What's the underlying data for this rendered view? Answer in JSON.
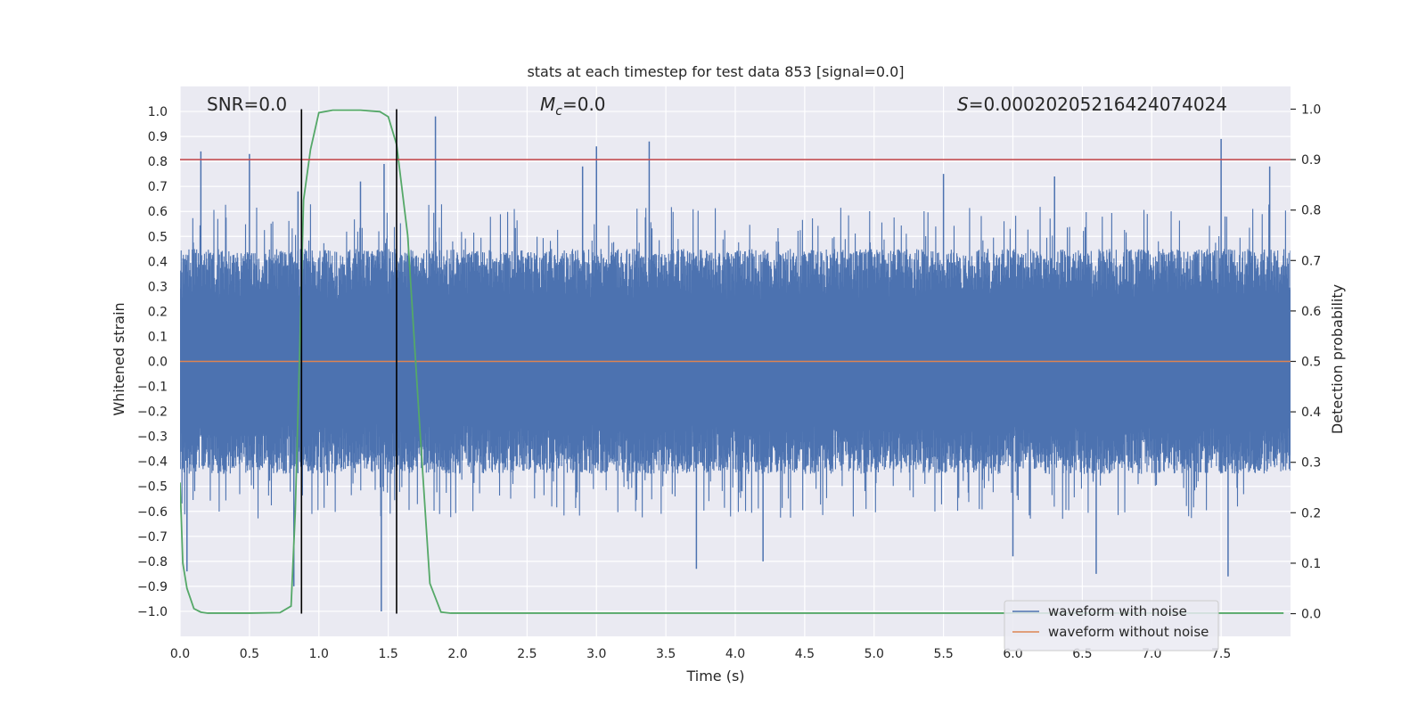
{
  "chart_data": {
    "type": "line",
    "title": "stats at each timestep for test data 853 [signal=0.0]",
    "xlabel": "Time (s)",
    "ylabel": "Whitened strain",
    "y2label": "Detection probability",
    "xlim": [
      0.0,
      8.0
    ],
    "ylim": [
      -1.1,
      1.1
    ],
    "y2lim": [
      -0.045,
      1.045
    ],
    "x_ticks": [
      0.0,
      0.5,
      1.0,
      1.5,
      2.0,
      2.5,
      3.0,
      3.5,
      4.0,
      4.5,
      5.0,
      5.5,
      6.0,
      6.5,
      7.0,
      7.5
    ],
    "x_tick_labels": [
      "0.0",
      "0.5",
      "1.0",
      "1.5",
      "2.0",
      "2.5",
      "3.0",
      "3.5",
      "4.0",
      "4.5",
      "5.0",
      "5.5",
      "6.0",
      "6.5",
      "7.0",
      "7.5"
    ],
    "y_ticks": [
      1.0,
      0.9,
      0.8,
      0.7,
      0.6,
      0.5,
      0.4,
      0.3,
      0.2,
      0.1,
      0.0,
      -0.1,
      -0.2,
      -0.3,
      -0.4,
      -0.5,
      -0.6,
      -0.7,
      -0.8,
      -0.9,
      -1.0
    ],
    "y_tick_labels": [
      "1.0",
      "0.9",
      "0.8",
      "0.7",
      "0.6",
      "0.5",
      "0.4",
      "0.3",
      "0.2",
      "0.1",
      "0.0",
      "−0.1",
      "−0.2",
      "−0.3",
      "−0.4",
      "−0.5",
      "−0.6",
      "−0.7",
      "−0.8",
      "−0.9",
      "−1.0"
    ],
    "y2_ticks": [
      1.0,
      0.9,
      0.8,
      0.7,
      0.6,
      0.5,
      0.4,
      0.3,
      0.2,
      0.1,
      0.0
    ],
    "y2_tick_labels": [
      "1.0",
      "0.9",
      "0.8",
      "0.7",
      "0.6",
      "0.5",
      "0.4",
      "0.3",
      "0.2",
      "0.1",
      "0.0"
    ],
    "grid": true,
    "legend_position": "lower-right",
    "annotations": {
      "snr": "SNR=0.0",
      "mc_symbol": "M",
      "mc_sub": "c",
      "mc_value": "=0.0",
      "s_symbol": "S",
      "s_value": "=0.00020205216424074024"
    },
    "vertical_lines": [
      0.875,
      1.56
    ],
    "threshold_y2": 0.9,
    "series": [
      {
        "name": "waveform with noise",
        "color": "#4c72b0",
        "axis": "left",
        "kind": "noise",
        "x_range": [
          0.0,
          8.0
        ],
        "envelope_typical": 0.45,
        "spikes": [
          [
            0.05,
            -0.84
          ],
          [
            0.15,
            0.84
          ],
          [
            0.5,
            0.83
          ],
          [
            0.82,
            -0.9
          ],
          [
            0.85,
            0.68
          ],
          [
            1.3,
            0.72
          ],
          [
            1.45,
            -1.0
          ],
          [
            1.47,
            0.79
          ],
          [
            1.84,
            0.98
          ],
          [
            2.9,
            0.78
          ],
          [
            3.0,
            0.86
          ],
          [
            3.38,
            0.88
          ],
          [
            3.72,
            -0.83
          ],
          [
            4.2,
            -0.8
          ],
          [
            5.5,
            0.75
          ],
          [
            6.0,
            -0.78
          ],
          [
            6.3,
            0.74
          ],
          [
            6.6,
            -0.85
          ],
          [
            7.5,
            0.89
          ],
          [
            7.55,
            -0.86
          ],
          [
            7.85,
            0.78
          ]
        ]
      },
      {
        "name": "waveform without noise",
        "color": "#dd8452",
        "axis": "left",
        "x": [
          0.0,
          8.0
        ],
        "values": [
          0.0,
          0.0
        ]
      },
      {
        "name": "detection probability",
        "color": "#55a868",
        "axis": "right",
        "x": [
          0.0,
          0.02,
          0.05,
          0.1,
          0.15,
          0.2,
          0.3,
          0.5,
          0.72,
          0.8,
          0.83,
          0.86,
          0.89,
          0.94,
          1.0,
          1.1,
          1.3,
          1.44,
          1.5,
          1.56,
          1.64,
          1.72,
          1.8,
          1.88,
          1.95,
          2.2,
          7.95
        ],
        "values": [
          0.26,
          0.1,
          0.05,
          0.01,
          0.003,
          0.001,
          0.001,
          0.001,
          0.002,
          0.015,
          0.2,
          0.5,
          0.82,
          0.92,
          0.993,
          0.998,
          0.998,
          0.995,
          0.985,
          0.93,
          0.75,
          0.4,
          0.06,
          0.003,
          0.001,
          0.001,
          0.001
        ]
      }
    ]
  },
  "colors": {
    "plot_background": "#eaeaf2",
    "grid": "#ffffff",
    "threshold_line": "#c44e52",
    "vertical_line": "#000000"
  }
}
